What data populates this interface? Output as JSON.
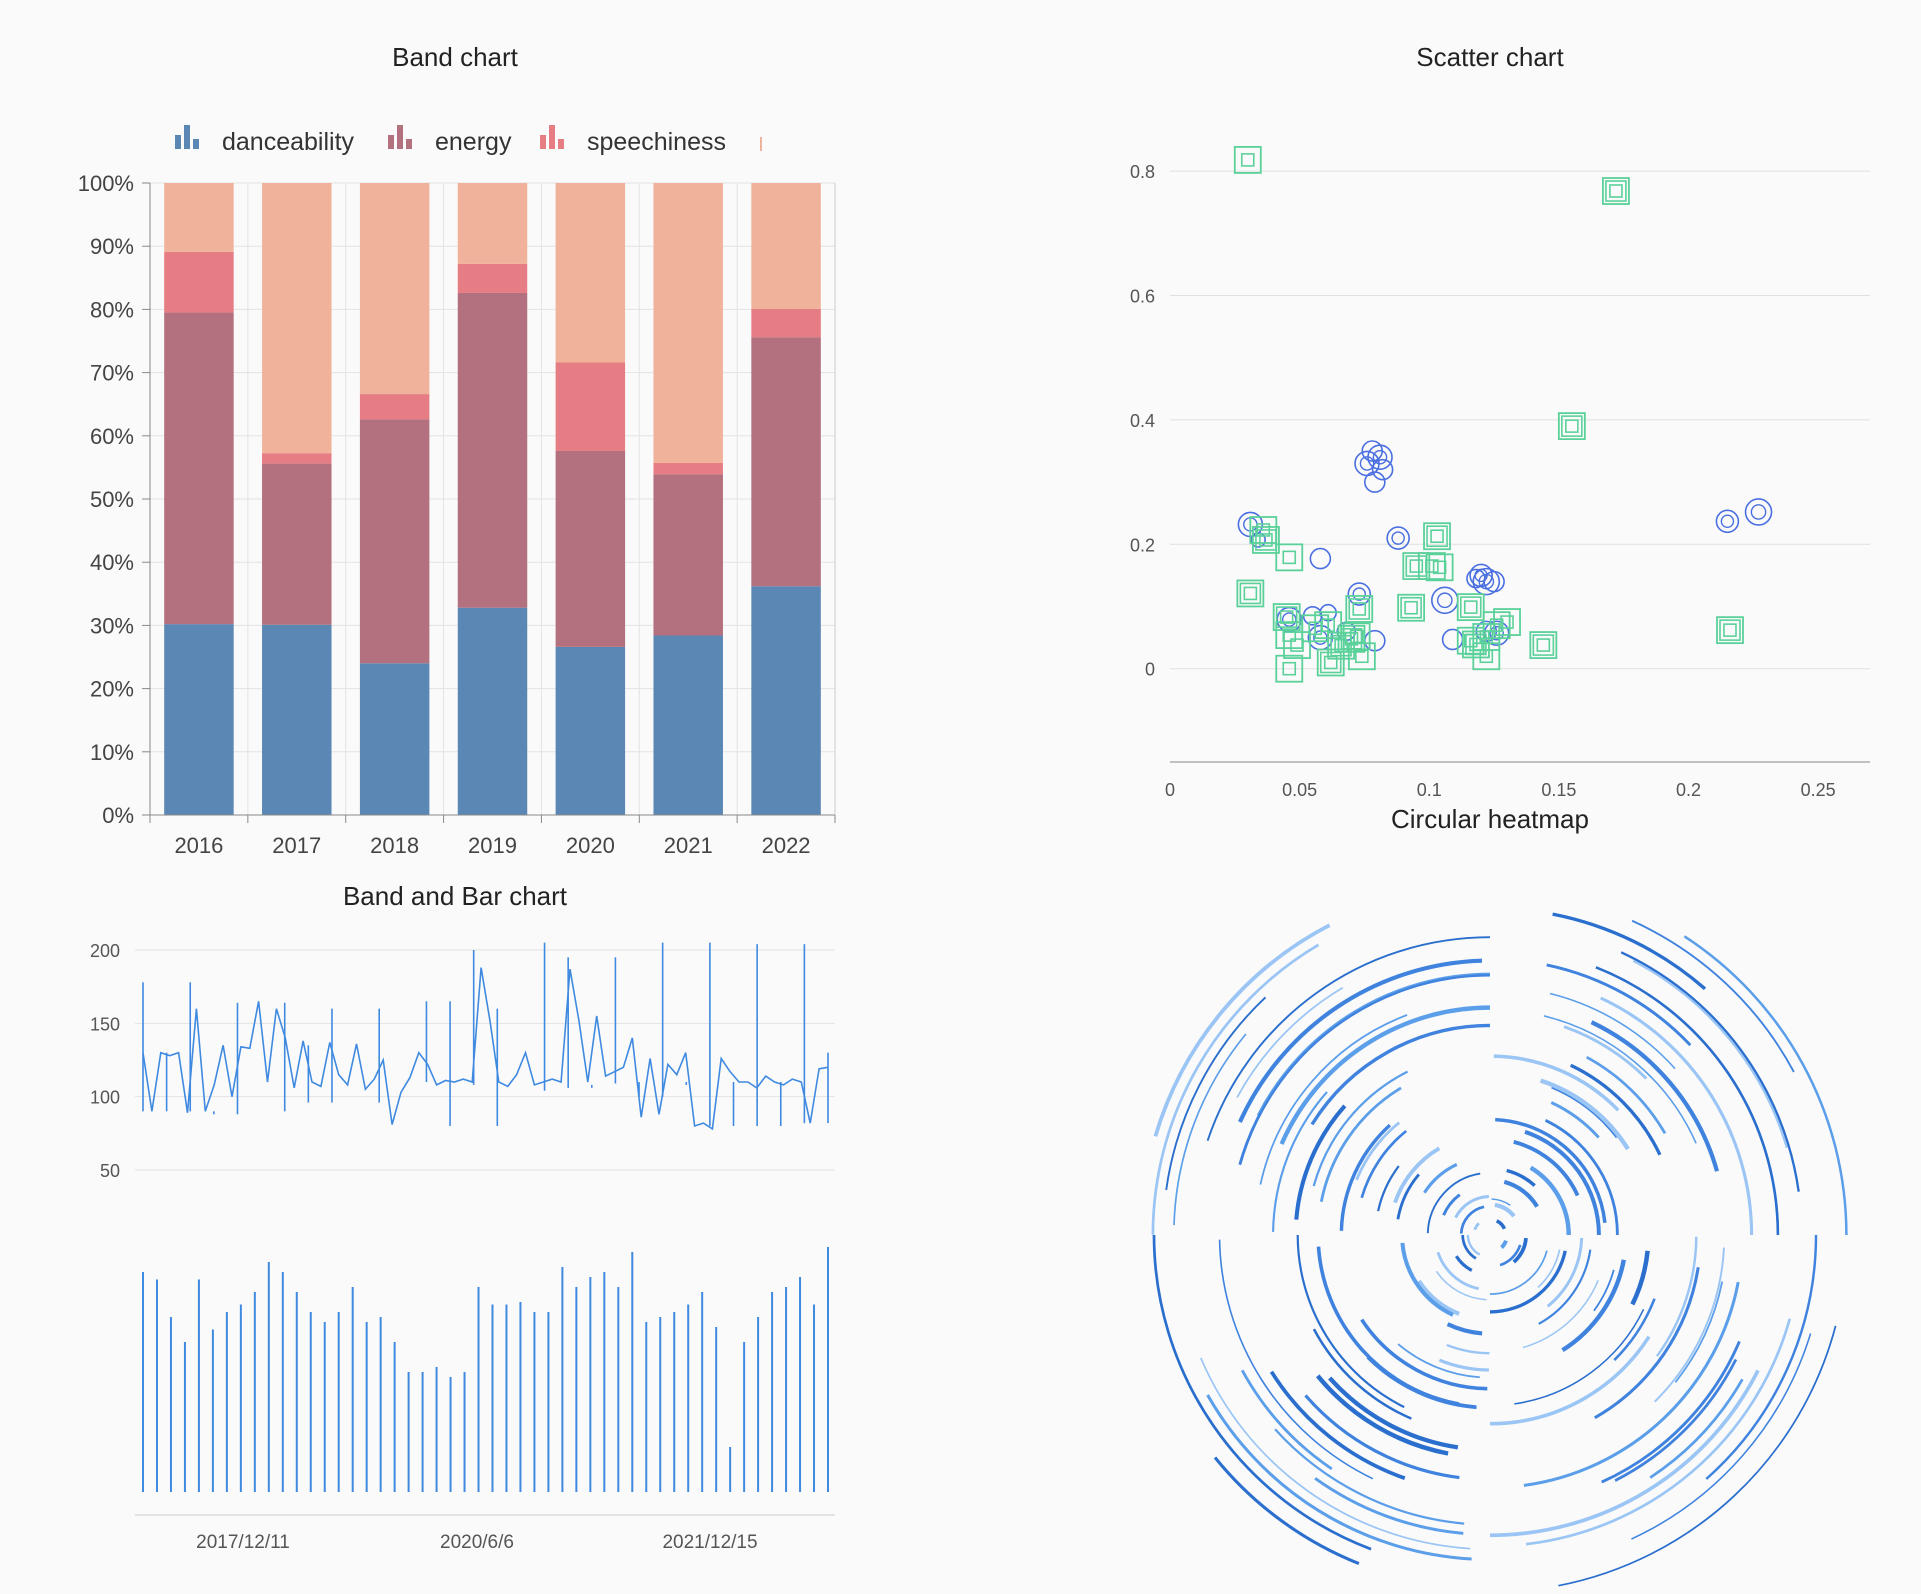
{
  "chart_data": [
    {
      "id": "band-chart",
      "type": "bar",
      "stacked": true,
      "title": "Band chart",
      "legend_position": "top",
      "legend": [
        {
          "name": "danceability",
          "color": "#5a87b4"
        },
        {
          "name": "energy",
          "color": "#b3707e"
        },
        {
          "name": "speechiness",
          "color": "#e67c84"
        },
        {
          "name": "",
          "color": "#f0b29a"
        }
      ],
      "categories": [
        "2016",
        "2017",
        "2018",
        "2019",
        "2020",
        "2021",
        "2022"
      ],
      "series": [
        {
          "name": "danceability",
          "color": "#5a87b4",
          "values": [
            30.2,
            30.1,
            24.0,
            32.8,
            26.6,
            28.4,
            36.2
          ]
        },
        {
          "name": "energy",
          "color": "#b3707e",
          "values": [
            49.3,
            25.5,
            38.6,
            49.8,
            31.0,
            25.5,
            39.4
          ]
        },
        {
          "name": "speechiness",
          "color": "#e67c84",
          "values": [
            9.6,
            1.6,
            4.0,
            4.6,
            14.0,
            1.8,
            4.5
          ]
        },
        {
          "color": "#f0b29a",
          "values": [
            10.9,
            42.8,
            33.4,
            12.8,
            28.4,
            44.3,
            19.9
          ]
        }
      ],
      "y_ticks": [
        "0%",
        "10%",
        "20%",
        "30%",
        "40%",
        "50%",
        "60%",
        "70%",
        "80%",
        "90%",
        "100%"
      ],
      "ylim": [
        0,
        100
      ],
      "grid": true
    },
    {
      "id": "scatter-chart",
      "type": "scatter",
      "title": "Scatter chart",
      "x_ticks": [
        "0",
        "0.05",
        "0.1",
        "0.15",
        "0.2",
        "0.25"
      ],
      "y_ticks": [
        "0",
        "0.2",
        "0.4",
        "0.6",
        "0.8"
      ],
      "xlim": [
        0,
        0.27
      ],
      "ylim": [
        -0.15,
        0.85
      ],
      "grid": true,
      "series": [
        {
          "marker": "circle",
          "color": "#4a6fe0",
          "points": [
            [
              0.031,
              0.232,
              12
            ],
            [
              0.034,
              0.207,
              7
            ],
            [
              0.058,
              0.177,
              10
            ],
            [
              0.046,
              0.079,
              12
            ],
            [
              0.055,
              0.085,
              9
            ],
            [
              0.058,
              0.05,
              12
            ],
            [
              0.073,
              0.12,
              11
            ],
            [
              0.076,
              0.33,
              12
            ],
            [
              0.078,
              0.35,
              10
            ],
            [
              0.079,
              0.3,
              10
            ],
            [
              0.081,
              0.34,
              12
            ],
            [
              0.082,
              0.32,
              10
            ],
            [
              0.079,
              0.045,
              10
            ],
            [
              0.088,
              0.21,
              11
            ],
            [
              0.106,
              0.11,
              13
            ],
            [
              0.109,
              0.047,
              10
            ],
            [
              0.118,
              0.145,
              9
            ],
            [
              0.12,
              0.15,
              11
            ],
            [
              0.122,
              0.14,
              13
            ],
            [
              0.125,
              0.14,
              10
            ],
            [
              0.122,
              0.06,
              10
            ],
            [
              0.126,
              0.057,
              12
            ],
            [
              0.215,
              0.237,
              11
            ],
            [
              0.227,
              0.252,
              13
            ],
            [
              0.068,
              0.06,
              9
            ],
            [
              0.061,
              0.09,
              8
            ]
          ]
        },
        {
          "marker": "square",
          "color": "#5bd19a",
          "points": [
            [
              0.03,
              0.818,
              1
            ],
            [
              0.036,
              0.223,
              1
            ],
            [
              0.037,
              0.207,
              2
            ],
            [
              0.046,
              0.179,
              1
            ],
            [
              0.031,
              0.121,
              2
            ],
            [
              0.045,
              0.083,
              2
            ],
            [
              0.046,
              0.054,
              1
            ],
            [
              0.046,
              0.0,
              1
            ],
            [
              0.049,
              0.038,
              1
            ],
            [
              0.056,
              0.065,
              1
            ],
            [
              0.061,
              0.07,
              1
            ],
            [
              0.062,
              0.01,
              2
            ],
            [
              0.066,
              0.037,
              2
            ],
            [
              0.07,
              0.048,
              2
            ],
            [
              0.073,
              0.096,
              2
            ],
            [
              0.074,
              0.02,
              1
            ],
            [
              0.072,
              0.052,
              1
            ],
            [
              0.095,
              0.165,
              2
            ],
            [
              0.101,
              0.165,
              1
            ],
            [
              0.103,
              0.213,
              2
            ],
            [
              0.093,
              0.098,
              2
            ],
            [
              0.116,
              0.099,
              2
            ],
            [
              0.116,
              0.045,
              1
            ],
            [
              0.118,
              0.039,
              2
            ],
            [
              0.122,
              0.051,
              1
            ],
            [
              0.122,
              0.02,
              1
            ],
            [
              0.126,
              0.07,
              1
            ],
            [
              0.13,
              0.075,
              1
            ],
            [
              0.144,
              0.038,
              2
            ],
            [
              0.155,
              0.39,
              2
            ],
            [
              0.172,
              0.768,
              2
            ],
            [
              0.216,
              0.062,
              2
            ],
            [
              0.104,
              0.163,
              1
            ]
          ]
        }
      ]
    },
    {
      "id": "band-bar-chart",
      "type": "bar",
      "title": "Band and Bar chart",
      "y_ticks": [
        "50",
        "100",
        "150",
        "200"
      ],
      "ylim": [
        50,
        200
      ],
      "x_ticks": [
        "2017/12/11",
        "2020/6/6",
        "2021/12/15"
      ],
      "line_values": [
        130,
        90,
        130,
        128,
        130,
        89,
        160,
        90,
        108,
        135,
        100,
        134,
        133,
        165,
        110,
        160,
        140,
        106,
        138,
        110,
        107,
        137,
        115,
        108,
        136,
        105,
        112,
        125,
        81,
        103,
        113,
        130,
        122,
        108,
        111,
        110,
        112,
        110,
        188,
        152,
        110,
        107,
        115,
        130,
        108,
        110,
        112,
        110,
        187,
        152,
        110,
        155,
        114,
        117,
        120,
        140,
        86,
        126,
        88,
        122,
        115,
        130,
        80,
        82,
        78,
        126,
        117,
        110,
        110,
        106,
        114,
        110,
        108,
        112,
        110,
        82,
        119,
        120
      ],
      "band_high": [
        178,
        130,
        178,
        90,
        164,
        90,
        164,
        135,
        160,
        96,
        160,
        96,
        165,
        165,
        200,
        160,
        105,
        205,
        195,
        106,
        195,
        110,
        205,
        108,
        205,
        110,
        204,
        110,
        204,
        130
      ],
      "band_low": [
        90,
        90,
        90,
        88,
        88,
        90,
        90,
        96,
        96,
        96,
        96,
        96,
        110,
        80,
        108,
        80,
        105,
        104,
        106,
        108,
        109,
        100,
        100,
        110,
        80,
        80,
        80,
        80,
        82,
        82
      ],
      "bar_values": [
        88,
        85,
        70,
        60,
        85,
        65,
        72,
        75,
        80,
        92,
        88,
        80,
        72,
        68,
        72,
        82,
        68,
        70,
        60,
        48,
        48,
        50,
        46,
        48,
        82,
        75,
        75,
        76,
        72,
        72,
        90,
        82,
        86,
        88,
        82,
        96,
        68,
        70,
        72,
        75,
        80,
        66,
        18,
        60,
        70,
        80,
        82,
        86,
        75,
        98
      ],
      "grid": true
    },
    {
      "id": "circular-heatmap",
      "type": "heatmap",
      "title": "Circular heatmap",
      "palette": [
        "#9ac5f4",
        "#5b9ee9",
        "#3f83df",
        "#2b6fce"
      ],
      "rings": 14,
      "sectors": 4
    }
  ]
}
